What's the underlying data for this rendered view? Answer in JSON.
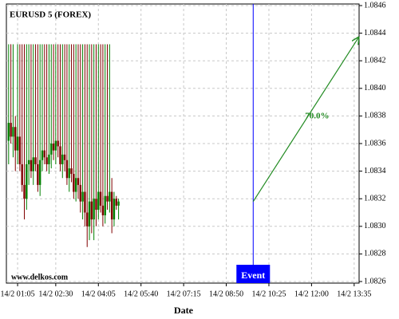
{
  "chart_data": {
    "type": "candlestick",
    "title": "EURUSD 5 (FOREX)",
    "watermark": "www.delkos.com",
    "x_label": "Date",
    "up_color": "#008000",
    "down_color": "#800000",
    "grid": true,
    "xlim": [
      "14/2 00:40",
      "14/2 13:46"
    ],
    "xticks": [
      "14/2 01:05",
      "14/2 02:30",
      "14/2 04:05",
      "14/2 05:40",
      "14/2 07:15",
      "14/2 08:50",
      "14/2 10:25",
      "14/2 12:00",
      "14/2 13:35"
    ],
    "ylim": [
      1.0826,
      1.0846
    ],
    "yticks": [
      1.0826,
      1.0828,
      {
        "value": 1.083,
        "label": "1.0830"
      },
      1.0832,
      1.0834,
      1.0836,
      1.0838,
      {
        "value": 1.084,
        "label": "1.0840"
      },
      1.0842,
      1.0844,
      1.0846
    ],
    "x": [
      "14/2 00:45",
      "14/2 00:50",
      "14/2 00:55",
      "14/2 01:00",
      "14/2 01:05",
      "14/2 01:10",
      "14/2 01:15",
      "14/2 01:20",
      "14/2 01:25",
      "14/2 01:30",
      "14/2 01:35",
      "14/2 01:40",
      "14/2 01:45",
      "14/2 01:50",
      "14/2 01:55",
      "14/2 02:00",
      "14/2 02:05",
      "14/2 02:10",
      "14/2 02:15",
      "14/2 02:20",
      "14/2 02:25",
      "14/2 02:30",
      "14/2 02:35",
      "14/2 02:40",
      "14/2 02:45",
      "14/2 02:50",
      "14/2 02:55",
      "14/2 03:00",
      "14/2 03:05",
      "14/2 03:10",
      "14/2 03:15",
      "14/2 03:20",
      "14/2 03:25",
      "14/2 03:30",
      "14/2 03:35",
      "14/2 03:40",
      "14/2 03:45",
      "14/2 03:50",
      "14/2 03:55",
      "14/2 04:00",
      "14/2 04:05",
      "14/2 04:10",
      "14/2 04:15",
      "14/2 04:20",
      "14/2 04:25",
      "14/2 04:30",
      "14/2 04:35",
      "14/2 04:40",
      "14/2 04:45",
      "14/2 04:50"
    ],
    "open": [
      1.08362,
      1.08375,
      1.08365,
      1.08372,
      1.08355,
      1.08365,
      1.08345,
      1.0833,
      1.0832,
      1.08345,
      1.08348,
      1.0834,
      1.0835,
      1.08345,
      1.0833,
      1.08348,
      1.08355,
      1.0835,
      1.08345,
      1.08352,
      1.0836,
      1.08355,
      1.08362,
      1.08358,
      1.08345,
      1.08352,
      1.08348,
      1.08335,
      1.08342,
      1.08338,
      1.08325,
      1.08335,
      1.0833,
      1.08318,
      1.08325,
      1.0831,
      1.083,
      1.08318,
      1.08305,
      1.0832,
      1.08312,
      1.08325,
      1.08315,
      1.08308,
      1.08322,
      1.08318,
      1.08325,
      1.08305,
      1.0832,
      1.08315
    ],
    "high": [
      1.08432,
      1.08432,
      1.08432,
      1.0838,
      1.08432,
      1.08432,
      1.08432,
      1.08432,
      1.08432,
      1.08432,
      1.08432,
      1.08432,
      1.08432,
      1.08432,
      1.08432,
      1.08432,
      1.08432,
      1.08432,
      1.08432,
      1.08432,
      1.08432,
      1.08432,
      1.08432,
      1.08432,
      1.08432,
      1.08432,
      1.08432,
      1.08432,
      1.08432,
      1.08432,
      1.08432,
      1.08432,
      1.08432,
      1.08432,
      1.08432,
      1.08432,
      1.08432,
      1.08432,
      1.08432,
      1.08432,
      1.08432,
      1.08432,
      1.08432,
      1.08432,
      1.08432,
      1.08432,
      1.08335,
      1.08325,
      1.08322,
      1.0832
    ],
    "low": [
      1.08345,
      1.0836,
      1.0835,
      1.0834,
      1.08345,
      1.0834,
      1.08325,
      1.08305,
      1.08312,
      1.0833,
      1.08335,
      1.0833,
      1.0834,
      1.08325,
      1.08322,
      1.0834,
      1.08345,
      1.0834,
      1.08338,
      1.08342,
      1.08348,
      1.08345,
      1.0835,
      1.0834,
      1.08335,
      1.0834,
      1.0833,
      1.08325,
      1.08332,
      1.0832,
      1.08318,
      1.0832,
      1.0831,
      1.08305,
      1.083,
      1.08285,
      1.0829,
      1.08295,
      1.0829,
      1.083,
      1.08305,
      1.0831,
      1.083,
      1.08302,
      1.08312,
      1.0831,
      1.08295,
      1.083,
      1.08312,
      1.08305
    ],
    "close": [
      1.08375,
      1.08365,
      1.08372,
      1.08355,
      1.08365,
      1.08345,
      1.0833,
      1.0832,
      1.08345,
      1.08348,
      1.0834,
      1.0835,
      1.08345,
      1.0833,
      1.08348,
      1.08355,
      1.0835,
      1.08345,
      1.08352,
      1.0836,
      1.08355,
      1.08362,
      1.08358,
      1.08345,
      1.08352,
      1.08348,
      1.08335,
      1.08342,
      1.08338,
      1.08325,
      1.08335,
      1.0833,
      1.08318,
      1.08325,
      1.0831,
      1.083,
      1.08318,
      1.08305,
      1.0832,
      1.08312,
      1.08325,
      1.08315,
      1.08308,
      1.08322,
      1.08318,
      1.08325,
      1.08305,
      1.0832,
      1.08315,
      1.08318
    ],
    "annotations": [
      {
        "type": "event",
        "x": "14/2 09:50",
        "label": "Event",
        "color": "#0000ff"
      },
      {
        "type": "arrow",
        "x": [
          "14/2 09:50",
          "14/2 13:45"
        ],
        "y": [
          1.08318,
          1.08437
        ],
        "label": "70.0%",
        "color": "#228b22"
      }
    ]
  }
}
